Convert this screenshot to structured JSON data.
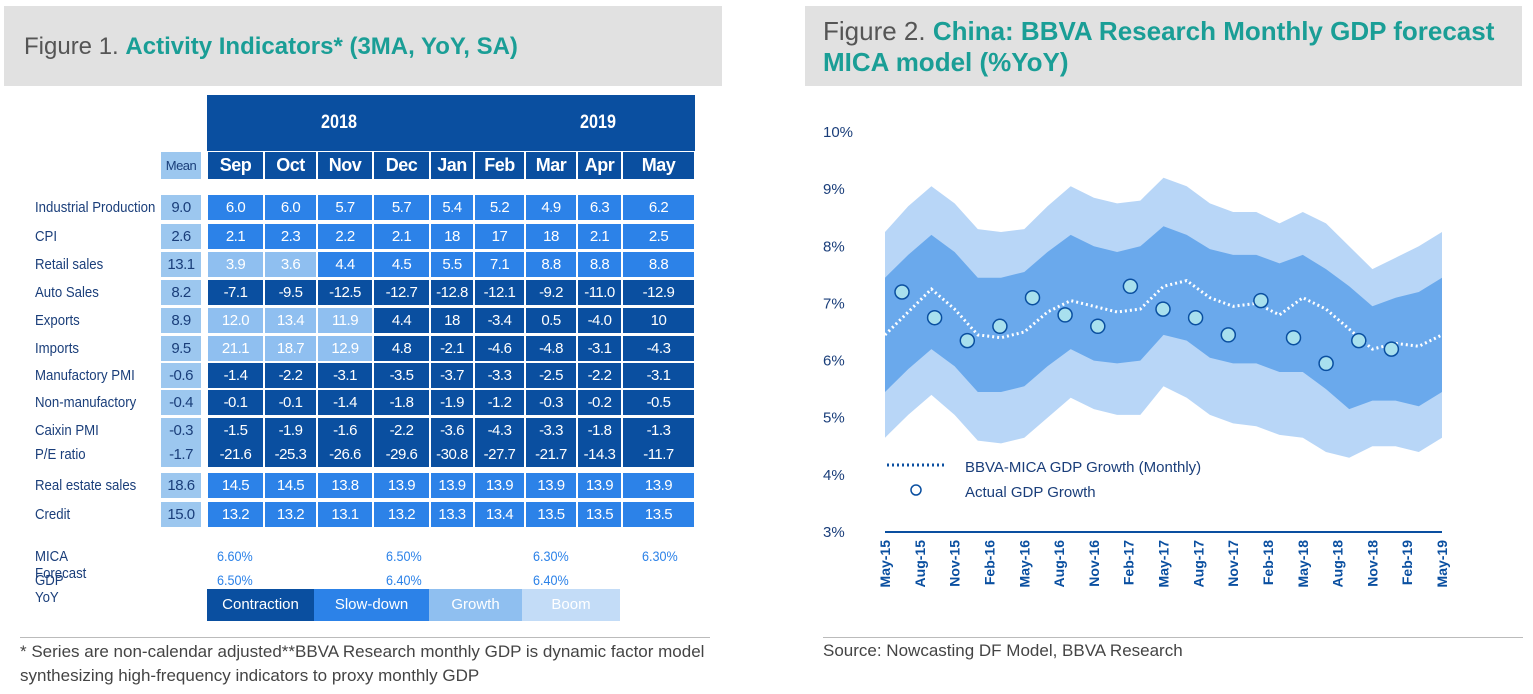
{
  "figure1": {
    "prefix": "Figure 1. ",
    "title": "Activity Indicators* (3MA, YoY, SA)",
    "years": [
      "2018",
      "2019"
    ],
    "mean_label": "Mean",
    "months": [
      "Sep",
      "Oct",
      "Nov",
      "Dec",
      "Jan",
      "Feb",
      "Mar",
      "Apr",
      "May"
    ],
    "rows": [
      {
        "label": "Industrial Production",
        "mean": "9.0",
        "values": [
          "6.0",
          "6.0",
          "5.7",
          "5.7",
          "5.4",
          "5.2",
          "4.9",
          "6.3",
          "6.2"
        ],
        "classes": [
          "s",
          "s",
          "s",
          "s",
          "s",
          "s",
          "s",
          "s",
          "s"
        ]
      },
      {
        "label": "CPI",
        "mean": "2.6",
        "values": [
          "2.1",
          "2.3",
          "2.2",
          "2.1",
          "18",
          "17",
          "18",
          "2.1",
          "2.5"
        ],
        "classes": [
          "s",
          "s",
          "s",
          "s",
          "s",
          "s",
          "s",
          "s",
          "s"
        ]
      },
      {
        "label": "Retail sales",
        "mean": "13.1",
        "values": [
          "3.9",
          "3.6",
          "4.4",
          "4.5",
          "5.5",
          "7.1",
          "8.8",
          "8.8",
          "8.8"
        ],
        "classes": [
          "g",
          "g",
          "s",
          "s",
          "s",
          "s",
          "s",
          "s",
          "s"
        ]
      },
      {
        "label": "Auto Sales",
        "mean": "8.2",
        "values": [
          "-7.1",
          "-9.5",
          "-12.5",
          "-12.7",
          "-12.8",
          "-12.1",
          "-9.2",
          "-11.0",
          "-12.9"
        ],
        "classes": [
          "c",
          "c",
          "c",
          "c",
          "c",
          "c",
          "c",
          "c",
          "c"
        ]
      },
      {
        "label": "Exports",
        "mean": "8.9",
        "values": [
          "12.0",
          "13.4",
          "11.9",
          "4.4",
          "18",
          "-3.4",
          "0.5",
          "-4.0",
          "10"
        ],
        "classes": [
          "g",
          "g",
          "g",
          "c",
          "c",
          "c",
          "c",
          "c",
          "c"
        ]
      },
      {
        "label": "Imports",
        "mean": "9.5",
        "values": [
          "21.1",
          "18.7",
          "12.9",
          "4.8",
          "-2.1",
          "-4.6",
          "-4.8",
          "-3.1",
          "-4.3"
        ],
        "classes": [
          "g",
          "g",
          "g",
          "c",
          "c",
          "c",
          "c",
          "c",
          "c"
        ]
      },
      {
        "label": "Manufactory PMI",
        "mean": "-0.6",
        "values": [
          "-1.4",
          "-2.2",
          "-3.1",
          "-3.5",
          "-3.7",
          "-3.3",
          "-2.5",
          "-2.2",
          "-3.1"
        ],
        "classes": [
          "c",
          "c",
          "c",
          "c",
          "c",
          "c",
          "c",
          "c",
          "c"
        ]
      },
      {
        "label": "Non-manufactory",
        "mean": "-0.4",
        "values": [
          "-0.1",
          "-0.1",
          "-1.4",
          "-1.8",
          "-1.9",
          "-1.2",
          "-0.3",
          "-0.2",
          "-0.5"
        ],
        "classes": [
          "c",
          "c",
          "c",
          "c",
          "c",
          "c",
          "c",
          "c",
          "c"
        ]
      },
      {
        "label": "Caixin PMI",
        "mean": "-0.3",
        "values": [
          "-1.5",
          "-1.9",
          "-1.6",
          "-2.2",
          "-3.6",
          "-4.3",
          "-3.3",
          "-1.8",
          "-1.3"
        ],
        "classes": [
          "c",
          "c",
          "c",
          "c",
          "c",
          "c",
          "c",
          "c",
          "c"
        ]
      },
      {
        "label": "P/E ratio",
        "mean": "-1.7",
        "values": [
          "-21.6",
          "-25.3",
          "-26.6",
          "-29.6",
          "-30.8",
          "-27.7",
          "-21.7",
          "-14.3",
          "-11.7"
        ],
        "classes": [
          "c",
          "c",
          "c",
          "c",
          "c",
          "c",
          "c",
          "c",
          "c"
        ]
      },
      {
        "label": "Real estate sales",
        "mean": "18.6",
        "values": [
          "14.5",
          "14.5",
          "13.8",
          "13.9",
          "13.9",
          "13.9",
          "13.9",
          "13.9",
          "13.9"
        ],
        "classes": [
          "s",
          "s",
          "s",
          "s",
          "s",
          "s",
          "s",
          "s",
          "s"
        ]
      },
      {
        "label": "Credit",
        "mean": "15.0",
        "values": [
          "13.2",
          "13.2",
          "13.1",
          "13.2",
          "13.3",
          "13.4",
          "13.5",
          "13.5",
          "13.5"
        ],
        "classes": [
          "s",
          "s",
          "s",
          "s",
          "s",
          "s",
          "s",
          "s",
          "s"
        ]
      }
    ],
    "mica_label": "MICA Forecast",
    "mica_values": [
      "6.60%",
      "6.50%",
      "6.30%",
      "6.30%"
    ],
    "gdp_label": "GDP YoY",
    "gdp_values": [
      "6.50%",
      "6.40%",
      "6.40%"
    ],
    "legend": [
      "Contraction",
      "Slow-down",
      "Growth",
      "Boom"
    ],
    "colors": {
      "contraction": "#0a4fa0",
      "slowdown": "#2c82e8",
      "growth": "#8fbff0",
      "boom": "#c3dcf7"
    },
    "footnote": "* Series are non-calendar adjusted**BBVA Research monthly GDP is dynamic factor model synthesizing high-frequency indicators to proxy monthly GDP"
  },
  "figure2": {
    "prefix": "Figure 2. ",
    "title": "China: BBVA Research Monthly GDP forecast MICA model (%YoY)",
    "source": "Source:  Nowcasting  DF Model, BBVA Research"
  },
  "chart_data": {
    "type": "line",
    "x_ticks": [
      "May-15",
      "Aug-15",
      "Nov-15",
      "Feb-16",
      "May-16",
      "Aug-16",
      "Nov-16",
      "Feb-17",
      "May-17",
      "Aug-17",
      "Nov-17",
      "Feb-18",
      "May-18",
      "Aug-18",
      "Nov-18",
      "Feb-19",
      "May-19"
    ],
    "y_ticks": [
      "10%",
      "9%",
      "8%",
      "7%",
      "6%",
      "5%",
      "4%",
      "3%"
    ],
    "ylim": [
      3,
      10
    ],
    "series": [
      {
        "name": "BBVA-MICA GDP Growth (Monthly)",
        "style": "dotted",
        "values": [
          6.45,
          6.85,
          7.25,
          6.9,
          6.45,
          6.4,
          6.5,
          6.85,
          7.05,
          6.95,
          6.85,
          6.9,
          7.3,
          7.4,
          7.1,
          6.95,
          7.0,
          6.8,
          7.1,
          6.9,
          6.55,
          6.2,
          6.3,
          6.25,
          6.45
        ]
      },
      {
        "name": "Actual GDP Growth",
        "style": "circle",
        "values": [
          7.2,
          6.75,
          6.35,
          6.6,
          7.1,
          6.8,
          6.6,
          7.3,
          6.9,
          6.75,
          6.45,
          7.05,
          6.4,
          5.95,
          6.35,
          6.2
        ]
      }
    ],
    "bands": {
      "outer_upper": [
        8.25,
        8.7,
        9.05,
        8.75,
        8.3,
        8.25,
        8.3,
        8.7,
        9.05,
        8.85,
        8.75,
        8.8,
        9.2,
        9.05,
        8.75,
        8.6,
        8.6,
        8.4,
        8.6,
        8.4,
        8.0,
        7.6,
        7.8,
        8.0,
        8.25
      ],
      "inner_upper": [
        7.45,
        7.85,
        8.2,
        7.9,
        7.45,
        7.45,
        7.55,
        7.9,
        8.2,
        8.0,
        7.9,
        8.0,
        8.35,
        8.2,
        7.95,
        7.85,
        7.85,
        7.7,
        7.85,
        7.6,
        7.3,
        6.95,
        7.1,
        7.2,
        7.45
      ],
      "inner_lower": [
        5.45,
        5.85,
        6.2,
        5.9,
        5.45,
        5.45,
        5.55,
        5.9,
        6.2,
        6.0,
        5.95,
        6.0,
        6.45,
        6.35,
        6.05,
        5.95,
        5.95,
        5.8,
        5.8,
        5.5,
        5.15,
        5.3,
        5.3,
        5.2,
        5.45
      ],
      "outer_lower": [
        4.65,
        5.05,
        5.4,
        5.05,
        4.6,
        4.55,
        4.65,
        5.0,
        5.35,
        5.15,
        5.05,
        5.05,
        5.55,
        5.35,
        5.05,
        4.9,
        4.85,
        4.7,
        4.65,
        4.4,
        4.3,
        4.5,
        4.5,
        4.4,
        4.65
      ]
    },
    "colors": {
      "outer": "#b8d6f7",
      "inner": "#6aa9ec",
      "line": "#ffffff",
      "circle_fill": "#a8e0ee",
      "circle_stroke": "#0a4fa0",
      "axis": "#0a4fa0",
      "text": "#1a3e7a"
    },
    "legend": [
      "BBVA-MICA GDP Growth (Monthly)",
      "Actual GDP Growth"
    ]
  }
}
